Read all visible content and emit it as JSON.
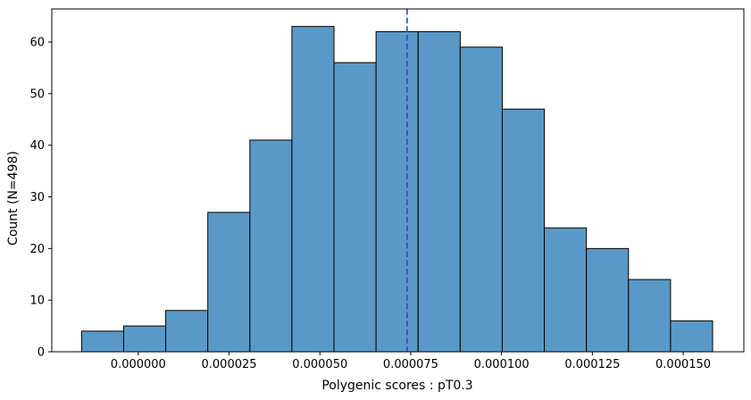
{
  "chart_data": {
    "type": "bar",
    "variant": "histogram",
    "title": "",
    "xlabel": "Polygenic scores : pT0.3",
    "ylabel": "Count (N=498)",
    "n_total": 498,
    "bins": {
      "start": -1.56e-05,
      "width": 1.158e-05,
      "count": 15
    },
    "counts": [
      4,
      5,
      8,
      27,
      41,
      63,
      56,
      62,
      62,
      59,
      47,
      24,
      20,
      14,
      6
    ],
    "xlim": [
      -2.38e-05,
      0.0001667
    ],
    "ylim": [
      0,
      66.4
    ],
    "xticks": {
      "values": [
        0.0,
        2.5e-05,
        5e-05,
        7.5e-05,
        0.0001,
        0.000125,
        0.00015
      ],
      "labels": [
        "0.000000",
        "0.000025",
        "0.000050",
        "0.000075",
        "0.000100",
        "0.000125",
        "0.000150"
      ]
    },
    "yticks": {
      "values": [
        0,
        10,
        20,
        30,
        40,
        50,
        60
      ],
      "labels": [
        "0",
        "10",
        "20",
        "30",
        "40",
        "50",
        "60"
      ]
    },
    "vline": {
      "x": 7.4e-05,
      "style": "dashed"
    },
    "grid": false,
    "legend": "none",
    "colors": {
      "bar_fill": "#5a99c7",
      "bar_edge": "#000000",
      "vline": "#3743c6",
      "axis": "#000000",
      "tick_text": "#000000",
      "background": "#ffffff"
    }
  }
}
